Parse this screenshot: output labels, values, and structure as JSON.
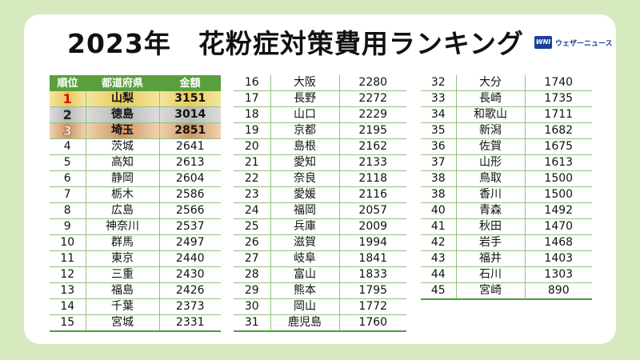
{
  "title_year": "2023年",
  "title_main": "花粉症対策費用ランキング",
  "logo": {
    "mark": "WNI",
    "text": "ウェザーニュース"
  },
  "headers": [
    "順位",
    "都道府県",
    "金額"
  ],
  "rows": [
    {
      "rank": "1",
      "pref": "山梨",
      "amount": "3151"
    },
    {
      "rank": "2",
      "pref": "徳島",
      "amount": "3014"
    },
    {
      "rank": "3",
      "pref": "埼玉",
      "amount": "2851"
    },
    {
      "rank": "4",
      "pref": "茨城",
      "amount": "2641"
    },
    {
      "rank": "5",
      "pref": "高知",
      "amount": "2613"
    },
    {
      "rank": "6",
      "pref": "静岡",
      "amount": "2604"
    },
    {
      "rank": "7",
      "pref": "栃木",
      "amount": "2586"
    },
    {
      "rank": "8",
      "pref": "広島",
      "amount": "2566"
    },
    {
      "rank": "9",
      "pref": "神奈川",
      "amount": "2537"
    },
    {
      "rank": "10",
      "pref": "群馬",
      "amount": "2497"
    },
    {
      "rank": "11",
      "pref": "東京",
      "amount": "2440"
    },
    {
      "rank": "12",
      "pref": "三重",
      "amount": "2430"
    },
    {
      "rank": "13",
      "pref": "福島",
      "amount": "2426"
    },
    {
      "rank": "14",
      "pref": "千葉",
      "amount": "2373"
    },
    {
      "rank": "15",
      "pref": "宮城",
      "amount": "2331"
    },
    {
      "rank": "16",
      "pref": "大阪",
      "amount": "2280"
    },
    {
      "rank": "17",
      "pref": "長野",
      "amount": "2272"
    },
    {
      "rank": "18",
      "pref": "山口",
      "amount": "2229"
    },
    {
      "rank": "19",
      "pref": "京都",
      "amount": "2195"
    },
    {
      "rank": "20",
      "pref": "島根",
      "amount": "2162"
    },
    {
      "rank": "21",
      "pref": "愛知",
      "amount": "2133"
    },
    {
      "rank": "22",
      "pref": "奈良",
      "amount": "2118"
    },
    {
      "rank": "23",
      "pref": "愛媛",
      "amount": "2116"
    },
    {
      "rank": "24",
      "pref": "福岡",
      "amount": "2057"
    },
    {
      "rank": "25",
      "pref": "兵庫",
      "amount": "2009"
    },
    {
      "rank": "26",
      "pref": "滋賀",
      "amount": "1994"
    },
    {
      "rank": "27",
      "pref": "岐阜",
      "amount": "1841"
    },
    {
      "rank": "28",
      "pref": "富山",
      "amount": "1833"
    },
    {
      "rank": "29",
      "pref": "熊本",
      "amount": "1795"
    },
    {
      "rank": "30",
      "pref": "岡山",
      "amount": "1772"
    },
    {
      "rank": "31",
      "pref": "鹿児島",
      "amount": "1760"
    },
    {
      "rank": "32",
      "pref": "大分",
      "amount": "1740"
    },
    {
      "rank": "33",
      "pref": "長崎",
      "amount": "1735"
    },
    {
      "rank": "34",
      "pref": "和歌山",
      "amount": "1711"
    },
    {
      "rank": "35",
      "pref": "新潟",
      "amount": "1682"
    },
    {
      "rank": "36",
      "pref": "佐賀",
      "amount": "1675"
    },
    {
      "rank": "37",
      "pref": "山形",
      "amount": "1613"
    },
    {
      "rank": "38",
      "pref": "鳥取",
      "amount": "1500"
    },
    {
      "rank": "38",
      "pref": "香川",
      "amount": "1500"
    },
    {
      "rank": "40",
      "pref": "青森",
      "amount": "1492"
    },
    {
      "rank": "41",
      "pref": "秋田",
      "amount": "1470"
    },
    {
      "rank": "42",
      "pref": "岩手",
      "amount": "1468"
    },
    {
      "rank": "43",
      "pref": "福井",
      "amount": "1403"
    },
    {
      "rank": "44",
      "pref": "石川",
      "amount": "1303"
    },
    {
      "rank": "45",
      "pref": "宮崎",
      "amount": "890"
    }
  ],
  "colors": {
    "background": "#d6e9bf",
    "header": "#5a9f3e",
    "line": "#8fc27e",
    "rank1": "#e0001a"
  }
}
